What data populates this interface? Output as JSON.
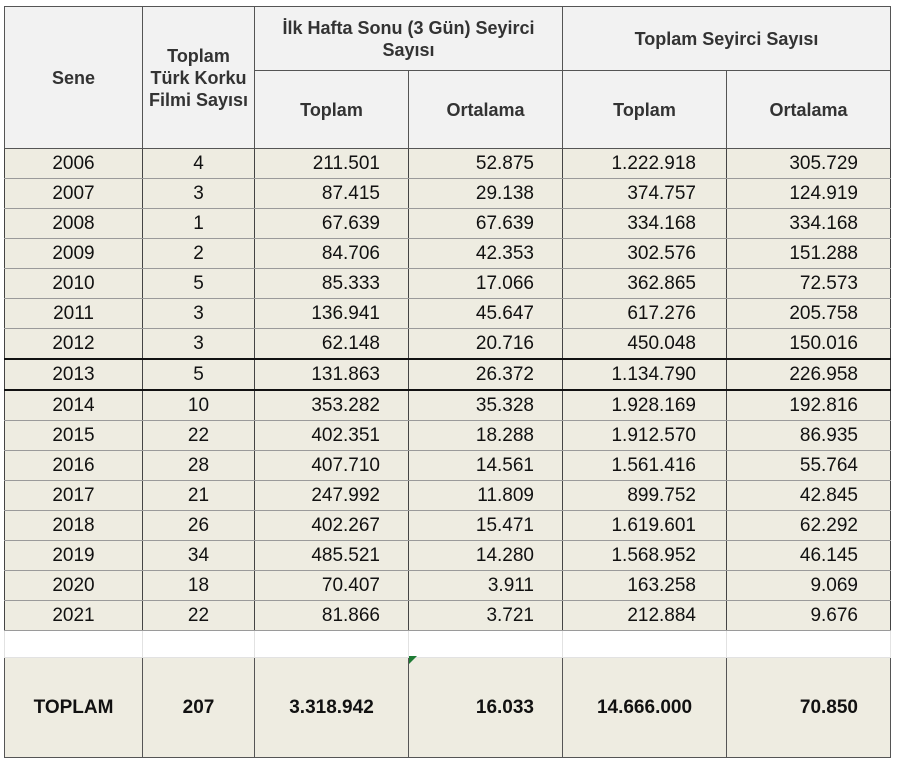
{
  "headers": {
    "year": "Sene",
    "film_count": "Toplam Türk Korku Filmi Sayısı",
    "opening_group": "İlk Hafta Sonu (3 Gün) Seyirci Sayısı",
    "total_group": "Toplam Seyirci Sayısı",
    "sub_total": "Toplam",
    "sub_avg": "Ortalama"
  },
  "rows": [
    {
      "year": "2006",
      "count": "4",
      "open_total": "211.501",
      "open_avg": "52.875",
      "all_total": "1.222.918",
      "all_avg": "305.729"
    },
    {
      "year": "2007",
      "count": "3",
      "open_total": "87.415",
      "open_avg": "29.138",
      "all_total": "374.757",
      "all_avg": "124.919"
    },
    {
      "year": "2008",
      "count": "1",
      "open_total": "67.639",
      "open_avg": "67.639",
      "all_total": "334.168",
      "all_avg": "334.168"
    },
    {
      "year": "2009",
      "count": "2",
      "open_total": "84.706",
      "open_avg": "42.353",
      "all_total": "302.576",
      "all_avg": "151.288"
    },
    {
      "year": "2010",
      "count": "5",
      "open_total": "85.333",
      "open_avg": "17.066",
      "all_total": "362.865",
      "all_avg": "72.573"
    },
    {
      "year": "2011",
      "count": "3",
      "open_total": "136.941",
      "open_avg": "45.647",
      "all_total": "617.276",
      "all_avg": "205.758"
    },
    {
      "year": "2012",
      "count": "3",
      "open_total": "62.148",
      "open_avg": "20.716",
      "all_total": "450.048",
      "all_avg": "150.016"
    },
    {
      "year": "2013",
      "count": "5",
      "open_total": "131.863",
      "open_avg": "26.372",
      "all_total": "1.134.790",
      "all_avg": "226.958"
    },
    {
      "year": "2014",
      "count": "10",
      "open_total": "353.282",
      "open_avg": "35.328",
      "all_total": "1.928.169",
      "all_avg": "192.816"
    },
    {
      "year": "2015",
      "count": "22",
      "open_total": "402.351",
      "open_avg": "18.288",
      "all_total": "1.912.570",
      "all_avg": "86.935"
    },
    {
      "year": "2016",
      "count": "28",
      "open_total": "407.710",
      "open_avg": "14.561",
      "all_total": "1.561.416",
      "all_avg": "55.764"
    },
    {
      "year": "2017",
      "count": "21",
      "open_total": "247.992",
      "open_avg": "11.809",
      "all_total": "899.752",
      "all_avg": "42.845"
    },
    {
      "year": "2018",
      "count": "26",
      "open_total": "402.267",
      "open_avg": "15.471",
      "all_total": "1.619.601",
      "all_avg": "62.292"
    },
    {
      "year": "2019",
      "count": "34",
      "open_total": "485.521",
      "open_avg": "14.280",
      "all_total": "1.568.952",
      "all_avg": "46.145"
    },
    {
      "year": "2020",
      "count": "18",
      "open_total": "70.407",
      "open_avg": "3.911",
      "all_total": "163.258",
      "all_avg": "9.069"
    },
    {
      "year": "2021",
      "count": "22",
      "open_total": "81.866",
      "open_avg": "3.721",
      "all_total": "212.884",
      "all_avg": "9.676"
    }
  ],
  "total": {
    "label": "TOPLAM",
    "count": "207",
    "open_total": "3.318.942",
    "open_avg": "16.033",
    "all_total": "14.666.000",
    "all_avg": "70.850"
  },
  "colors": {
    "header_bg": "#f2f2f2",
    "row_bg": "#eeece1",
    "cell_marker": "#1e7b34"
  }
}
